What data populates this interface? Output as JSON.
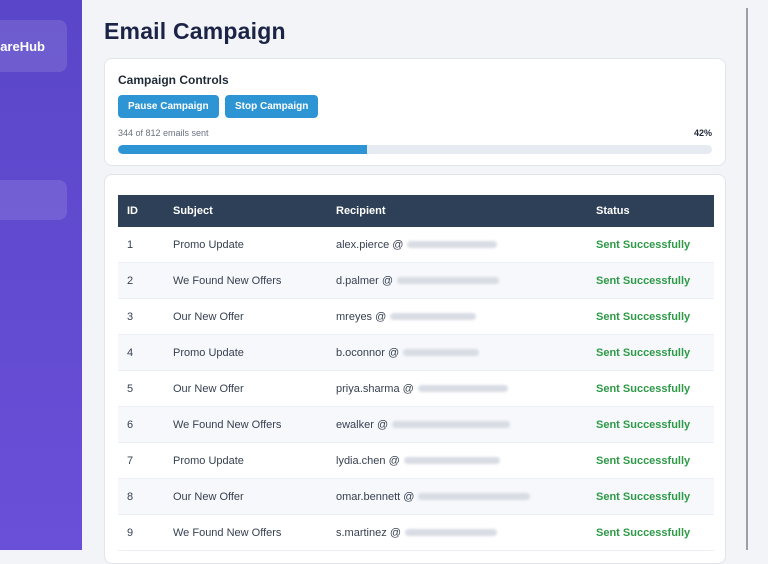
{
  "app": {
    "brand": "hareHub"
  },
  "page": {
    "title": "Email Campaign"
  },
  "controls": {
    "heading": "Campaign Controls",
    "pause_label": "Pause Campaign",
    "stop_label": "Stop Campaign",
    "progress_text": "344 of 812 emails sent",
    "progress_percent": "42%",
    "progress_fraction": 0.42
  },
  "table": {
    "headers": {
      "id": "ID",
      "subject": "Subject",
      "recipient": "Recipient",
      "status": "Status"
    },
    "rows": [
      {
        "id": "1",
        "subject": "Promo Update",
        "user": "alex.pierce",
        "at": "@",
        "status": "Sent Successfully"
      },
      {
        "id": "2",
        "subject": "We Found New Offers",
        "user": "d.palmer",
        "at": "@",
        "status": "Sent Successfully"
      },
      {
        "id": "3",
        "subject": "Our New Offer",
        "user": "mreyes",
        "at": "@",
        "status": "Sent Successfully"
      },
      {
        "id": "4",
        "subject": "Promo Update",
        "user": "b.oconnor",
        "at": "@",
        "status": "Sent Successfully"
      },
      {
        "id": "5",
        "subject": "Our New Offer",
        "user": "priya.sharma",
        "at": "@",
        "status": "Sent Successfully"
      },
      {
        "id": "6",
        "subject": "We Found New Offers",
        "user": "ewalker",
        "at": "@",
        "status": "Sent Successfully"
      },
      {
        "id": "7",
        "subject": "Promo Update",
        "user": "lydia.chen",
        "at": "@",
        "status": "Sent Successfully"
      },
      {
        "id": "8",
        "subject": "Our New Offer",
        "user": "omar.bennett",
        "at": "@",
        "status": "Sent Successfully"
      },
      {
        "id": "9",
        "subject": "We Found New Offers",
        "user": "s.martinez",
        "at": "@",
        "status": "Sent Successfully"
      }
    ]
  },
  "colors": {
    "accent": "#2d95d4",
    "header": "#2e4057",
    "success": "#2e9a48",
    "sidebar": "#5a46c8"
  }
}
